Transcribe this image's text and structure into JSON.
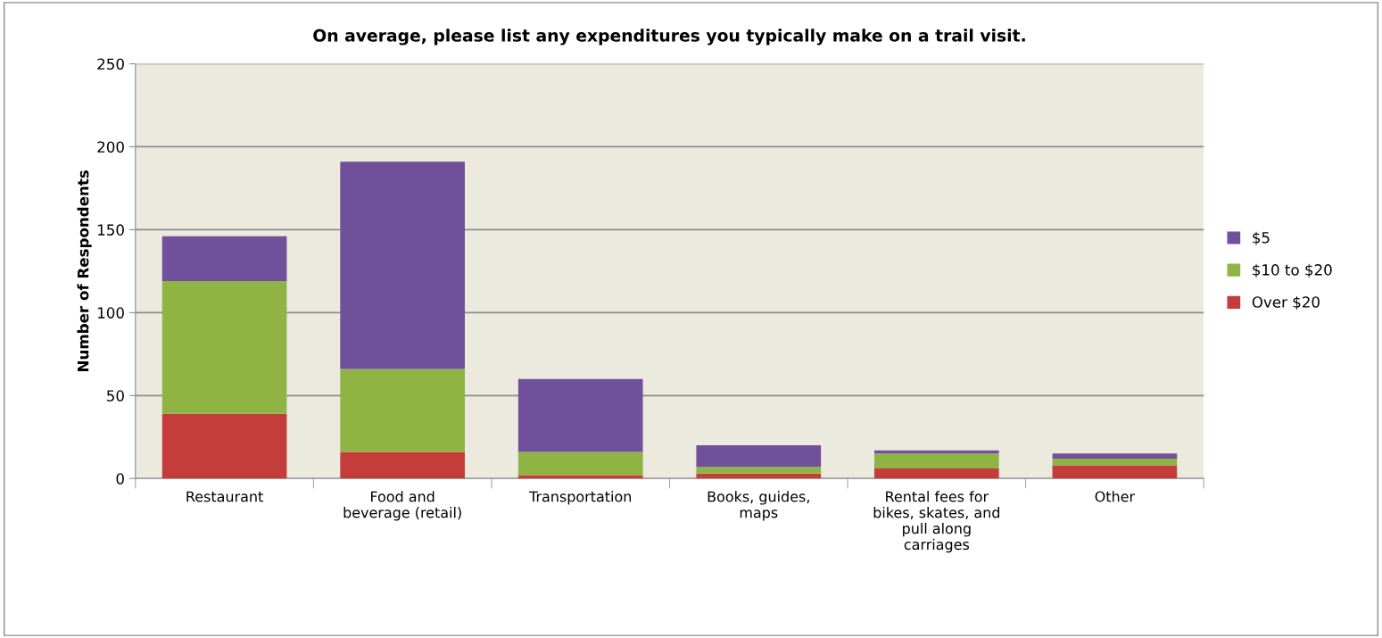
{
  "chart_data": {
    "type": "bar",
    "title": "On average, please list any expenditures you typically make on a trail visit.",
    "ylabel": "Number of Respondents",
    "categories": [
      "Restaurant",
      "Food and\nbeverage (retail)",
      "Transportation",
      "Books, guides,\nmaps",
      "Rental fees for\nbikes, skates, and\npull along\ncarriages",
      "Other"
    ],
    "stacked": true,
    "series": [
      {
        "name": "Over $20",
        "color": "#c43d3a",
        "values": [
          39,
          16,
          2,
          3,
          6,
          8
        ]
      },
      {
        "name": "$10 to $20",
        "color": "#8fb444",
        "values": [
          80,
          50,
          14,
          4,
          9,
          4
        ]
      },
      {
        "name": "$5",
        "color": "#70509a",
        "values": [
          27,
          125,
          44,
          13,
          2,
          3
        ]
      }
    ],
    "ylim": [
      0,
      250
    ],
    "yticks": [
      0,
      50,
      100,
      150,
      200,
      250
    ],
    "grid": "y",
    "legend": "right"
  }
}
